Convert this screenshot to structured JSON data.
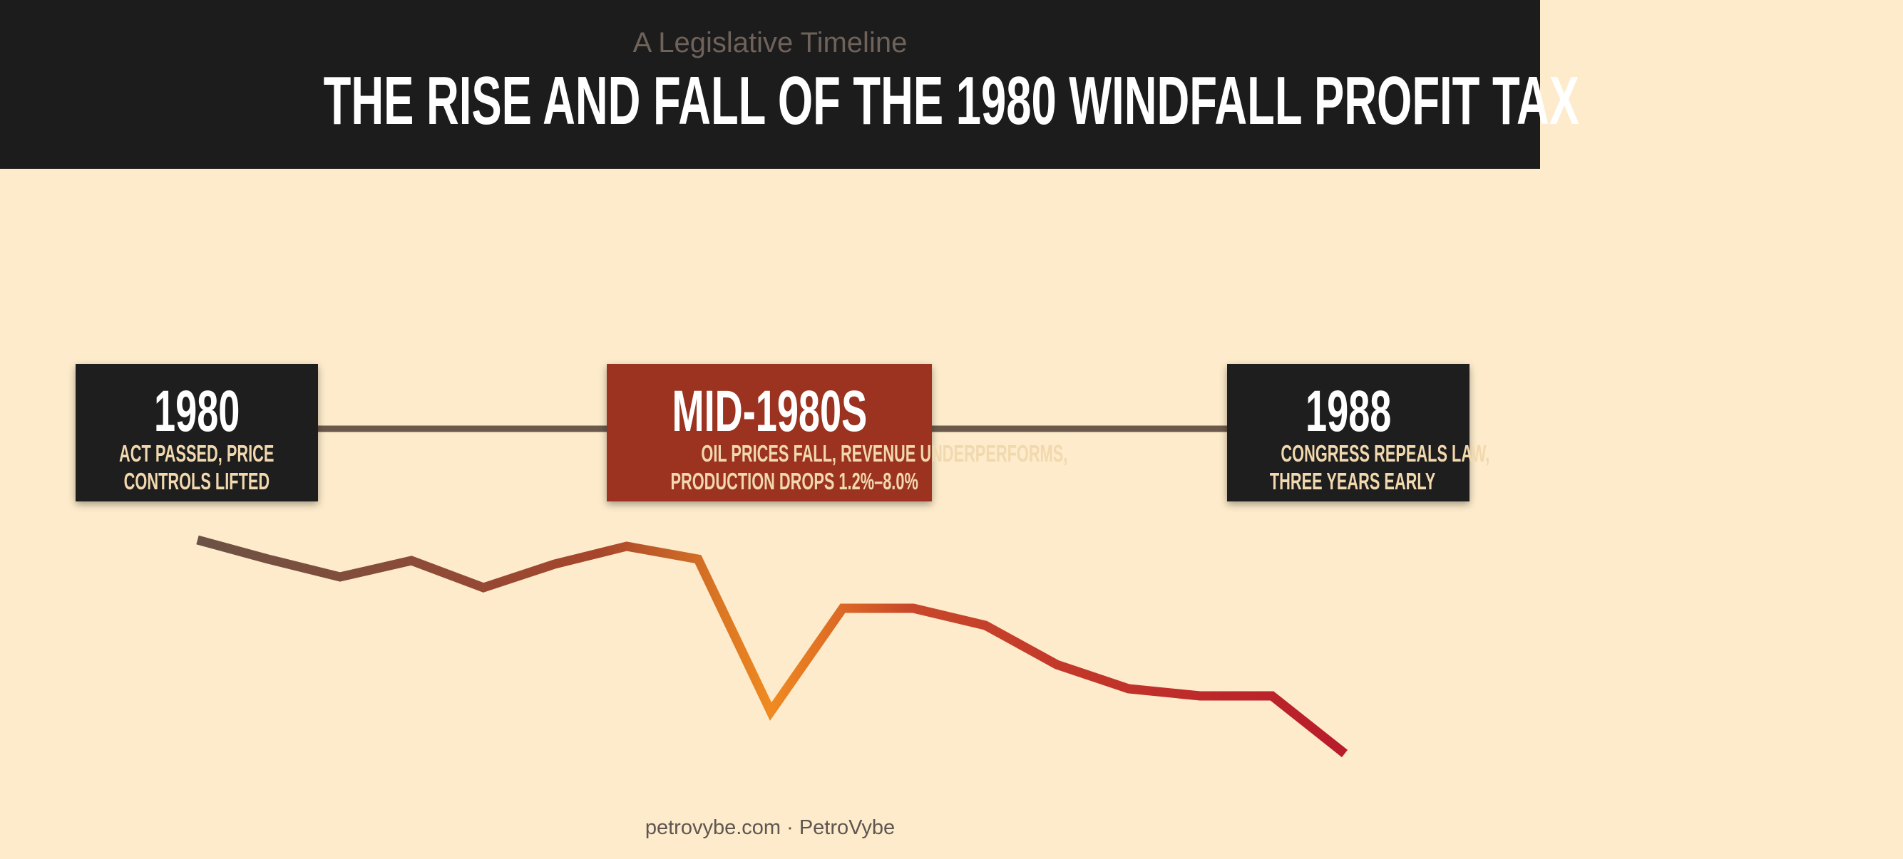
{
  "header": {
    "subtitle": "A Legislative Timeline",
    "title": "THE RISE AND FALL OF THE 1980 WINDFALL PROFIT TAX"
  },
  "nodes": [
    {
      "label": "1980",
      "description": [
        "ACT PASSED, PRICE",
        "CONTROLS LIFTED"
      ]
    },
    {
      "label": "MID-1980S",
      "description": [
        "OIL PRICES FALL, REVENUE UNDERPERFORMS,",
        "PRODUCTION DROPS 1.2%–8.0%"
      ]
    },
    {
      "label": "1988",
      "description": [
        "CONGRESS REPEALS LAW,",
        "THREE YEARS EARLY"
      ]
    }
  ],
  "footer": "petrovybe.com · PetroVybe"
}
